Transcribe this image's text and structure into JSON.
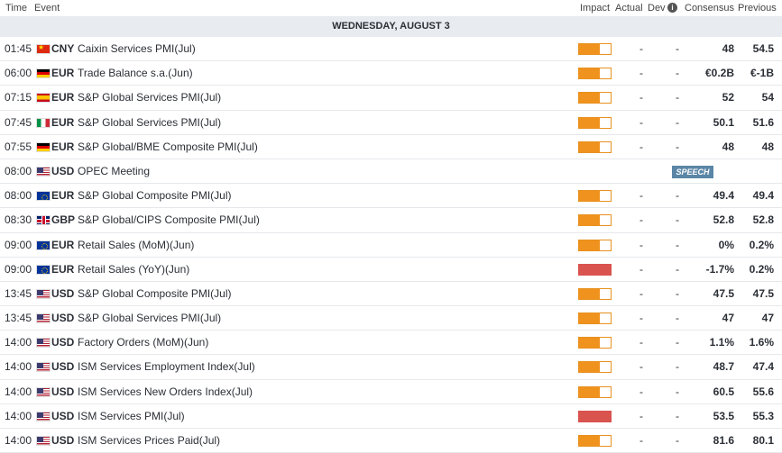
{
  "header": {
    "time": "Time",
    "event": "Event",
    "impact": "Impact",
    "actual": "Actual",
    "dev": "Dev",
    "info_icon": "info-icon",
    "info_glyph": "i",
    "consensus": "Consensus",
    "previous": "Previous"
  },
  "day_label": "WEDNESDAY, AUGUST 3",
  "colors": {
    "impact_medium": "#f0921e",
    "impact_high": "#d9534f",
    "speech_badge": "#5b86a6"
  },
  "rows": [
    {
      "time": "01:45",
      "flag": "cny",
      "currency": "CNY",
      "event": "Caixin Services PMI(Jul)",
      "impact": "medium",
      "impact_level": 0.67,
      "actual": "-",
      "dev": "-",
      "consensus": "48",
      "previous": "54.5"
    },
    {
      "time": "06:00",
      "flag": "de",
      "currency": "EUR",
      "event": "Trade Balance s.a.(Jun)",
      "impact": "medium",
      "impact_level": 0.67,
      "actual": "-",
      "dev": "-",
      "consensus": "€0.2B",
      "previous": "€-1B"
    },
    {
      "time": "07:15",
      "flag": "es",
      "currency": "EUR",
      "event": "S&P Global Services PMI(Jul)",
      "impact": "medium",
      "impact_level": 0.67,
      "actual": "-",
      "dev": "-",
      "consensus": "52",
      "previous": "54"
    },
    {
      "time": "07:45",
      "flag": "it",
      "currency": "EUR",
      "event": "S&P Global Services PMI(Jul)",
      "impact": "medium",
      "impact_level": 0.67,
      "actual": "-",
      "dev": "-",
      "consensus": "50.1",
      "previous": "51.6"
    },
    {
      "time": "07:55",
      "flag": "de",
      "currency": "EUR",
      "event": "S&P Global/BME Composite PMI(Jul)",
      "impact": "medium",
      "impact_level": 0.67,
      "actual": "-",
      "dev": "-",
      "consensus": "48",
      "previous": "48"
    },
    {
      "time": "08:00",
      "flag": "us",
      "currency": "USD",
      "event": "OPEC Meeting",
      "impact": "none",
      "impact_level": 0,
      "badge": "SPEECH",
      "actual": "",
      "dev": "",
      "consensus": "",
      "previous": ""
    },
    {
      "time": "08:00",
      "flag": "eu",
      "currency": "EUR",
      "event": "S&P Global Composite PMI(Jul)",
      "impact": "medium",
      "impact_level": 0.67,
      "actual": "-",
      "dev": "-",
      "consensus": "49.4",
      "previous": "49.4"
    },
    {
      "time": "08:30",
      "flag": "gb",
      "currency": "GBP",
      "event": "S&P Global/CIPS Composite PMI(Jul)",
      "impact": "medium",
      "impact_level": 0.67,
      "actual": "-",
      "dev": "-",
      "consensus": "52.8",
      "previous": "52.8"
    },
    {
      "time": "09:00",
      "flag": "eu",
      "currency": "EUR",
      "event": "Retail Sales (MoM)(Jun)",
      "impact": "medium",
      "impact_level": 0.67,
      "actual": "-",
      "dev": "-",
      "consensus": "0%",
      "previous": "0.2%"
    },
    {
      "time": "09:00",
      "flag": "eu",
      "currency": "EUR",
      "event": "Retail Sales (YoY)(Jun)",
      "impact": "high",
      "impact_level": 1,
      "actual": "-",
      "dev": "-",
      "consensus": "-1.7%",
      "previous": "0.2%"
    },
    {
      "time": "13:45",
      "flag": "us",
      "currency": "USD",
      "event": "S&P Global Composite PMI(Jul)",
      "impact": "medium",
      "impact_level": 0.67,
      "actual": "-",
      "dev": "-",
      "consensus": "47.5",
      "previous": "47.5"
    },
    {
      "time": "13:45",
      "flag": "us",
      "currency": "USD",
      "event": "S&P Global Services PMI(Jul)",
      "impact": "medium",
      "impact_level": 0.67,
      "actual": "-",
      "dev": "-",
      "consensus": "47",
      "previous": "47"
    },
    {
      "time": "14:00",
      "flag": "us",
      "currency": "USD",
      "event": "Factory Orders (MoM)(Jun)",
      "impact": "medium",
      "impact_level": 0.67,
      "actual": "-",
      "dev": "-",
      "consensus": "1.1%",
      "previous": "1.6%"
    },
    {
      "time": "14:00",
      "flag": "us",
      "currency": "USD",
      "event": "ISM Services Employment Index(Jul)",
      "impact": "medium",
      "impact_level": 0.67,
      "actual": "-",
      "dev": "-",
      "consensus": "48.7",
      "previous": "47.4"
    },
    {
      "time": "14:00",
      "flag": "us",
      "currency": "USD",
      "event": "ISM Services New Orders Index(Jul)",
      "impact": "medium",
      "impact_level": 0.67,
      "actual": "-",
      "dev": "-",
      "consensus": "60.5",
      "previous": "55.6"
    },
    {
      "time": "14:00",
      "flag": "us",
      "currency": "USD",
      "event": "ISM Services PMI(Jul)",
      "impact": "high",
      "impact_level": 1,
      "actual": "-",
      "dev": "-",
      "consensus": "53.5",
      "previous": "55.3"
    },
    {
      "time": "14:00",
      "flag": "us",
      "currency": "USD",
      "event": "ISM Services Prices Paid(Jul)",
      "impact": "medium",
      "impact_level": 0.67,
      "actual": "-",
      "dev": "-",
      "consensus": "81.6",
      "previous": "80.1"
    }
  ]
}
